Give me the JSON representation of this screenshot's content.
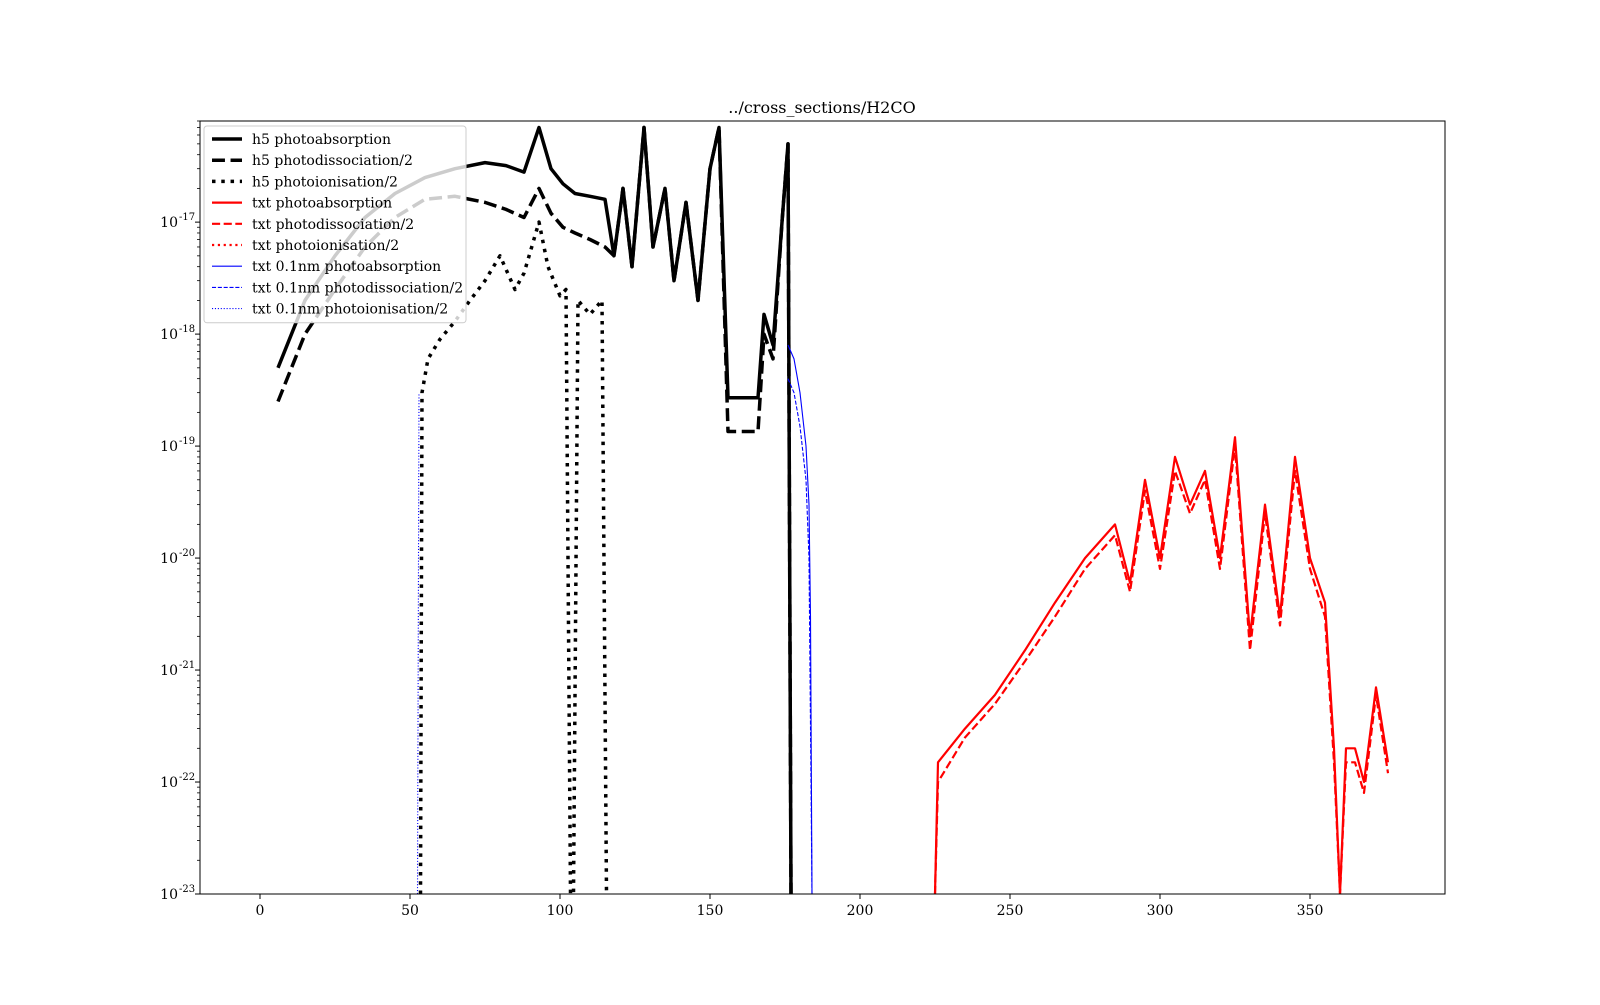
{
  "chart_data": {
    "type": "line",
    "title": "../cross_sections/H2CO",
    "xlabel": "",
    "ylabel": "",
    "xlim": [
      -20,
      395
    ],
    "ylim": [
      1e-23,
      8e-17
    ],
    "yscale": "log",
    "grid": false,
    "legend_position": "upper-left",
    "x_ticks": [
      0,
      50,
      100,
      150,
      200,
      250,
      300,
      350
    ],
    "x_tick_labels": [
      "0",
      "50",
      "100",
      "150",
      "200",
      "250",
      "300",
      "350"
    ],
    "y_ticks": [
      1e-23,
      1e-22,
      1e-21,
      1e-20,
      1e-19,
      1e-18,
      1e-17
    ],
    "y_tick_labels": [
      {
        "base": "10",
        "exp": "-23"
      },
      {
        "base": "10",
        "exp": "-22"
      },
      {
        "base": "10",
        "exp": "-21"
      },
      {
        "base": "10",
        "exp": "-20"
      },
      {
        "base": "10",
        "exp": "-19"
      },
      {
        "base": "10",
        "exp": "-18"
      },
      {
        "base": "10",
        "exp": "-17"
      }
    ],
    "series": [
      {
        "name": "h5 photoabsorption",
        "color": "#000000",
        "dash": "solid",
        "width": 3.5,
        "points": [
          [
            6,
            5e-19
          ],
          [
            15,
            2e-18
          ],
          [
            25,
            5e-18
          ],
          [
            35,
            1.1e-17
          ],
          [
            45,
            1.8e-17
          ],
          [
            55,
            2.5e-17
          ],
          [
            65,
            3e-17
          ],
          [
            75,
            3.4e-17
          ],
          [
            82,
            3.2e-17
          ],
          [
            88,
            2.8e-17
          ],
          [
            93,
            7e-17
          ],
          [
            97,
            3e-17
          ],
          [
            101,
            2.2e-17
          ],
          [
            105,
            1.8e-17
          ],
          [
            110,
            1.7e-17
          ],
          [
            115,
            1.6e-17
          ],
          [
            118,
            5e-18
          ],
          [
            121,
            2e-17
          ],
          [
            124,
            4e-18
          ],
          [
            128,
            7e-17
          ],
          [
            131,
            6e-18
          ],
          [
            135,
            2e-17
          ],
          [
            138,
            3e-18
          ],
          [
            142,
            1.5e-17
          ],
          [
            146,
            2e-18
          ],
          [
            150,
            3e-17
          ],
          [
            153,
            7e-17
          ],
          [
            156,
            2.7e-19
          ],
          [
            166,
            2.7e-19
          ],
          [
            168,
            1.5e-18
          ],
          [
            171,
            8e-19
          ],
          [
            174,
            1e-17
          ],
          [
            176,
            5e-17
          ],
          [
            177,
            1e-23
          ]
        ]
      },
      {
        "name": "h5 photodissociation/2",
        "color": "#000000",
        "dash": "dashed",
        "width": 3.5,
        "points": [
          [
            6,
            2.5e-19
          ],
          [
            15,
            1e-18
          ],
          [
            25,
            2.5e-18
          ],
          [
            35,
            6e-18
          ],
          [
            45,
            1.1e-17
          ],
          [
            55,
            1.6e-17
          ],
          [
            65,
            1.7e-17
          ],
          [
            75,
            1.5e-17
          ],
          [
            82,
            1.3e-17
          ],
          [
            88,
            1.1e-17
          ],
          [
            93,
            2e-17
          ],
          [
            97,
            1.2e-17
          ],
          [
            101,
            9e-18
          ],
          [
            105,
            8e-18
          ],
          [
            110,
            7e-18
          ],
          [
            115,
            6e-18
          ],
          [
            118,
            5e-18
          ],
          [
            121,
            2e-17
          ],
          [
            124,
            4e-18
          ],
          [
            128,
            7e-17
          ],
          [
            131,
            6e-18
          ],
          [
            135,
            2e-17
          ],
          [
            138,
            3e-18
          ],
          [
            142,
            1.5e-17
          ],
          [
            146,
            2e-18
          ],
          [
            150,
            3e-17
          ],
          [
            153,
            7e-17
          ],
          [
            156,
            1.35e-19
          ],
          [
            166,
            1.35e-19
          ],
          [
            168,
            1e-18
          ],
          [
            171,
            6e-19
          ],
          [
            174,
            1e-17
          ],
          [
            176,
            5e-17
          ],
          [
            177,
            1e-23
          ]
        ]
      },
      {
        "name": "h5 photoionisation/2",
        "color": "#000000",
        "dash": "dotted",
        "width": 3.5,
        "points": [
          [
            53.5,
            1e-23
          ],
          [
            54,
            3e-19
          ],
          [
            56,
            6e-19
          ],
          [
            60,
            9e-19
          ],
          [
            65,
            1.3e-18
          ],
          [
            70,
            2e-18
          ],
          [
            75,
            3e-18
          ],
          [
            80,
            5e-18
          ],
          [
            85,
            2.5e-18
          ],
          [
            88,
            3.5e-18
          ],
          [
            93,
            1e-17
          ],
          [
            96,
            4e-18
          ],
          [
            100,
            2.2e-18
          ],
          [
            102,
            2.5e-18
          ],
          [
            103.5,
            1e-23
          ],
          [
            104.5,
            1e-23
          ],
          [
            106,
            2e-18
          ],
          [
            110,
            1.5e-18
          ],
          [
            114,
            2e-18
          ],
          [
            115.5,
            1e-23
          ]
        ]
      },
      {
        "name": "txt photoabsorption",
        "color": "#ff0000",
        "dash": "solid",
        "width": 2.2,
        "points": [
          [
            225,
            1e-23
          ],
          [
            226,
            1.5e-22
          ],
          [
            235,
            3e-22
          ],
          [
            245,
            6e-22
          ],
          [
            255,
            1.5e-21
          ],
          [
            265,
            4e-21
          ],
          [
            275,
            1e-20
          ],
          [
            285,
            2e-20
          ],
          [
            290,
            6e-21
          ],
          [
            295,
            5e-20
          ],
          [
            300,
            1e-20
          ],
          [
            305,
            8e-20
          ],
          [
            310,
            3e-20
          ],
          [
            315,
            6e-20
          ],
          [
            320,
            1e-20
          ],
          [
            325,
            1.2e-19
          ],
          [
            330,
            2e-21
          ],
          [
            335,
            3e-20
          ],
          [
            340,
            3e-21
          ],
          [
            345,
            8e-20
          ],
          [
            350,
            1e-20
          ],
          [
            355,
            4e-21
          ],
          [
            358,
            2e-22
          ],
          [
            360,
            1e-23
          ],
          [
            362,
            2e-22
          ],
          [
            365,
            2e-22
          ],
          [
            368,
            1e-22
          ],
          [
            372,
            7e-22
          ],
          [
            376,
            1.5e-22
          ]
        ]
      },
      {
        "name": "txt photodissociation/2",
        "color": "#ff0000",
        "dash": "dashed",
        "width": 2.2,
        "points": [
          [
            225,
            1e-23
          ],
          [
            226,
            1e-22
          ],
          [
            235,
            2.5e-22
          ],
          [
            245,
            5e-22
          ],
          [
            255,
            1.2e-21
          ],
          [
            265,
            3e-21
          ],
          [
            275,
            8e-21
          ],
          [
            285,
            1.6e-20
          ],
          [
            290,
            5e-21
          ],
          [
            295,
            4e-20
          ],
          [
            300,
            8e-21
          ],
          [
            305,
            6e-20
          ],
          [
            310,
            2.5e-20
          ],
          [
            315,
            5e-20
          ],
          [
            320,
            8e-21
          ],
          [
            325,
            1e-19
          ],
          [
            330,
            1.5e-21
          ],
          [
            335,
            2.5e-20
          ],
          [
            340,
            2.5e-21
          ],
          [
            345,
            6e-20
          ],
          [
            350,
            8e-21
          ],
          [
            355,
            3e-21
          ],
          [
            358,
            1.5e-22
          ],
          [
            360,
            1e-23
          ],
          [
            362,
            1.5e-22
          ],
          [
            365,
            1.5e-22
          ],
          [
            368,
            8e-23
          ],
          [
            372,
            6e-22
          ],
          [
            376,
            1.2e-22
          ]
        ]
      },
      {
        "name": "txt photoionisation/2",
        "color": "#ff0000",
        "dash": "dotted",
        "width": 2.2,
        "points": []
      },
      {
        "name": "txt 0.1nm photoabsorption",
        "color": "#0000ff",
        "dash": "solid",
        "width": 1.1,
        "points": [
          [
            176,
            8e-19
          ],
          [
            178,
            6e-19
          ],
          [
            180,
            3e-19
          ],
          [
            182,
            1e-19
          ],
          [
            183,
            3e-20
          ],
          [
            183.5,
            3e-21
          ],
          [
            184,
            1e-23
          ]
        ]
      },
      {
        "name": "txt 0.1nm photodissociation/2",
        "color": "#0000ff",
        "dash": "dashed",
        "width": 1.1,
        "points": [
          [
            176,
            4e-19
          ],
          [
            178,
            3e-19
          ],
          [
            180,
            1.5e-19
          ],
          [
            182,
            5e-20
          ],
          [
            183,
            1e-20
          ],
          [
            184,
            1e-23
          ]
        ]
      },
      {
        "name": "txt 0.1nm photoionisation/2",
        "color": "#0000ff",
        "dash": "dotted",
        "width": 1.1,
        "points": [
          [
            52.5,
            1e-23
          ],
          [
            53,
            3e-19
          ]
        ]
      }
    ]
  }
}
